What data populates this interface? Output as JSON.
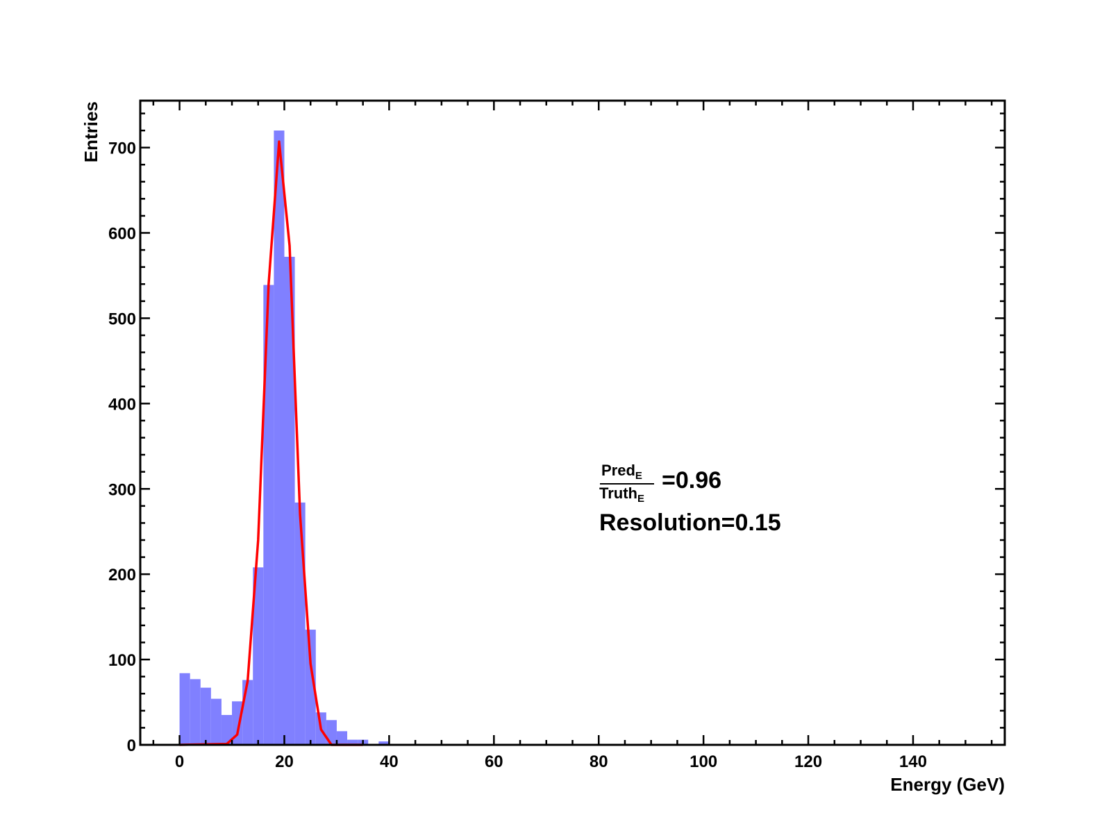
{
  "chart_data": {
    "type": "bar",
    "xlabel": "Energy (GeV)",
    "ylabel": "Entries",
    "xlim": [
      -7.5,
      157.5
    ],
    "ylim": [
      0,
      755
    ],
    "xticks": [
      "0",
      "20",
      "40",
      "60",
      "80",
      "100",
      "120",
      "140"
    ],
    "yticks": [
      "0",
      "100",
      "200",
      "300",
      "400",
      "500",
      "600",
      "700"
    ],
    "grid": false,
    "bin_width": 2,
    "series": [
      {
        "kind": "histogram",
        "color": "#8080ff",
        "bin_edges": [
          0,
          2,
          4,
          6,
          8,
          10,
          12,
          14,
          16,
          18,
          20,
          22,
          24,
          26,
          28,
          30,
          32,
          34,
          36,
          38,
          40
        ],
        "values": [
          84,
          77,
          67,
          54,
          35,
          51,
          76,
          208,
          539,
          720,
          572,
          284,
          135,
          38,
          29,
          16,
          6,
          6,
          0,
          4
        ]
      },
      {
        "kind": "fit",
        "color": "#ff0000",
        "x": [
          0,
          9,
          11,
          13,
          15,
          17,
          19,
          21,
          23,
          25,
          27,
          29,
          35
        ],
        "y": [
          0,
          1,
          12,
          75,
          240,
          540,
          707,
          585,
          270,
          95,
          18,
          0,
          0
        ]
      }
    ],
    "annotations": {
      "ratio_numerator": "Pred",
      "ratio_numerator_sub": "E",
      "ratio_denominator": "Truth",
      "ratio_denominator_sub": "E",
      "ratio_value": "=0.96",
      "resolution": "Resolution=0.15"
    }
  }
}
